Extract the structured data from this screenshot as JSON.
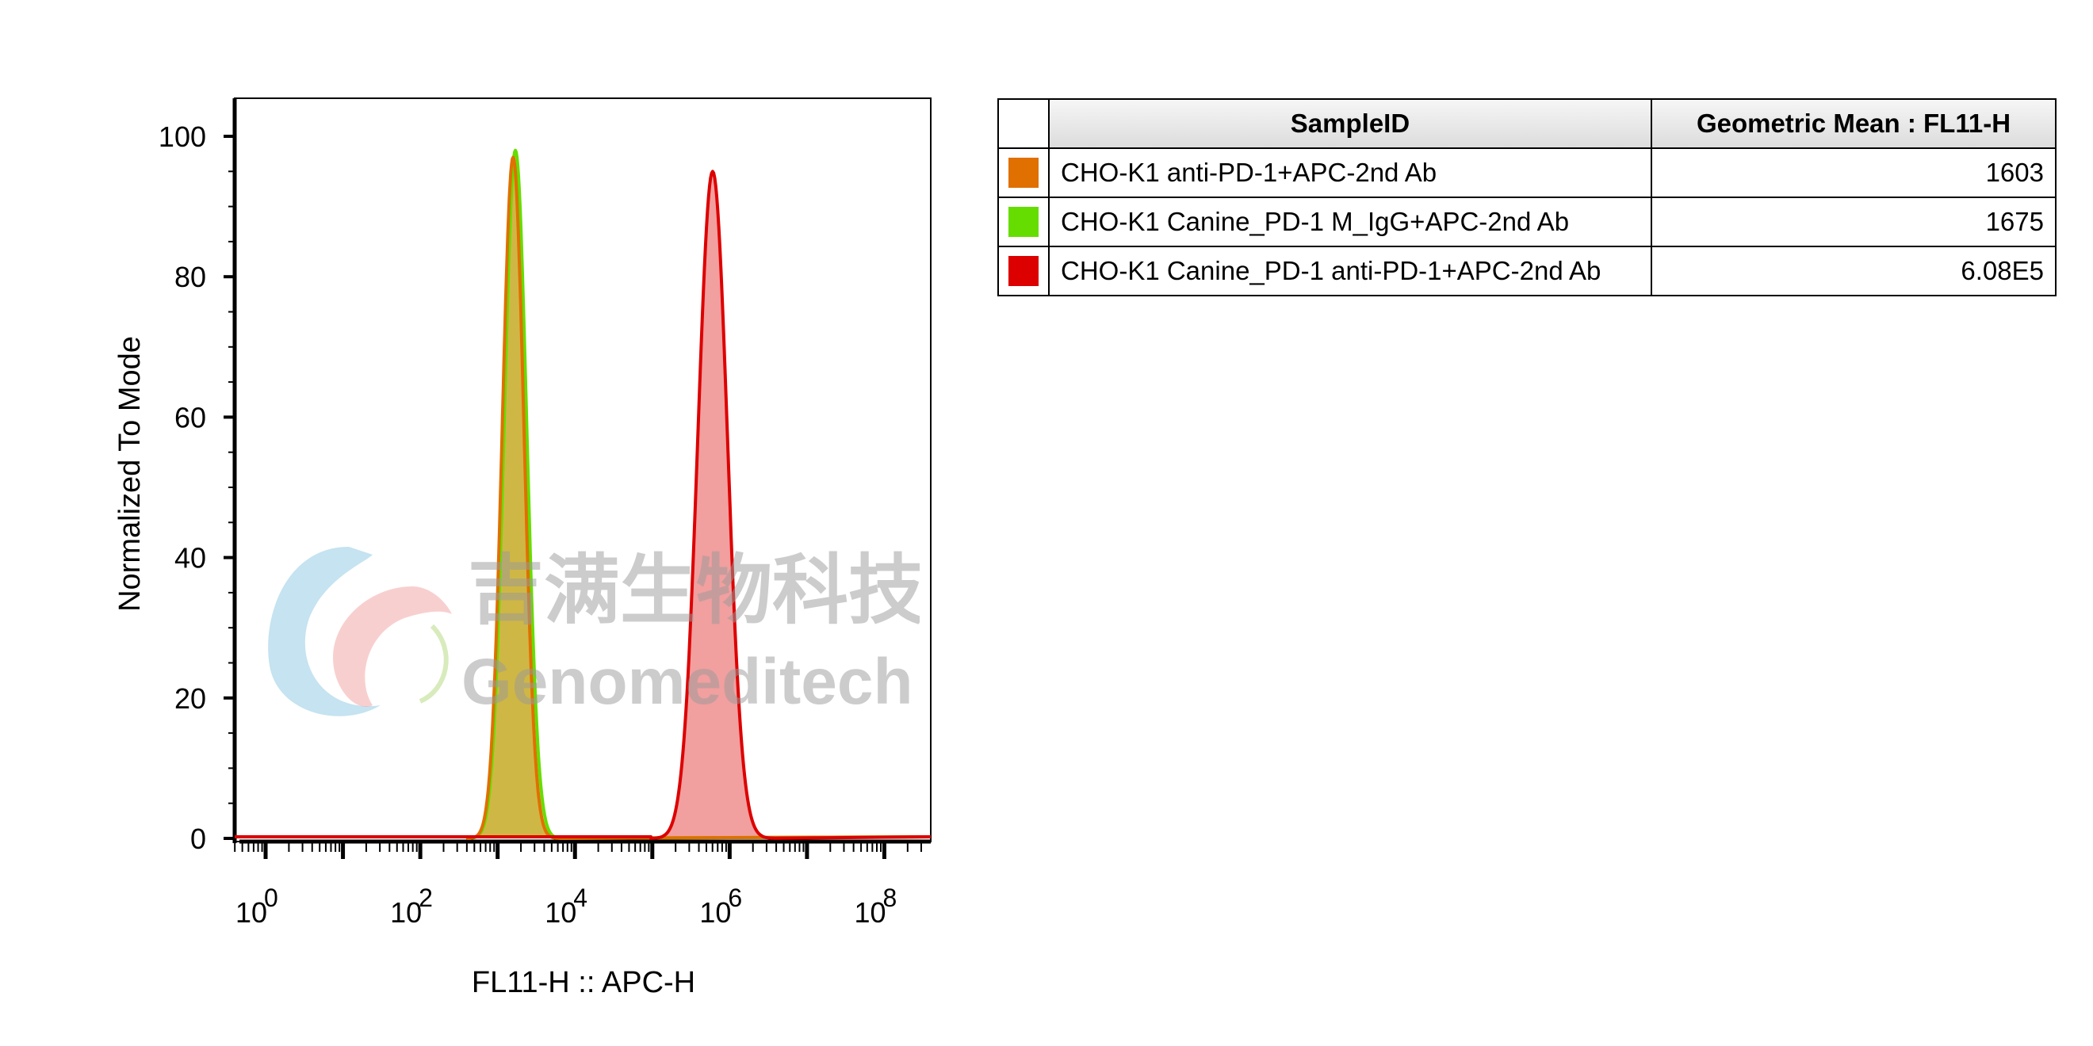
{
  "chart_data": {
    "type": "area",
    "xlabel": "FL11-H :: APC-H",
    "ylabel": "Normalized To Mode",
    "x_scale": "log",
    "xlim_log10": [
      -0.4,
      8.6
    ],
    "ylim": [
      0,
      100
    ],
    "y_ticks": [
      0,
      20,
      40,
      60,
      80,
      100
    ],
    "x_tick_labels": [
      {
        "base": "10",
        "exp": "0",
        "log10": 0
      },
      {
        "base": "10",
        "exp": "2",
        "log10": 2
      },
      {
        "base": "10",
        "exp": "4",
        "log10": 4
      },
      {
        "base": "10",
        "exp": "6",
        "log10": 6
      },
      {
        "base": "10",
        "exp": "8",
        "log10": 8
      }
    ],
    "grid": false,
    "series": [
      {
        "name": "CHO-K1 anti-PD-1+APC-2nd Ab",
        "color": "#e07000",
        "fill": "rgba(200,170,40,0.8)",
        "peak_log10": 3.2,
        "peak_value": 97,
        "sigma": 0.14
      },
      {
        "name": "CHO-K1 Canine_PD-1 M_IgG+APC-2nd Ab",
        "color": "#66dd00",
        "fill": "rgba(190,200,60,0.35)",
        "peak_log10": 3.23,
        "peak_value": 98,
        "sigma": 0.145
      },
      {
        "name": "CHO-K1 Canine_PD-1 anti-PD-1+APC-2nd Ab",
        "color": "#dd0000",
        "fill": "rgba(230,80,80,0.55)",
        "peak_log10": 5.78,
        "peak_value": 95,
        "sigma": 0.19
      }
    ]
  },
  "legend": {
    "headers": [
      "SampleID",
      "Geometric Mean : FL11-H"
    ],
    "rows": [
      {
        "color": "#e07000",
        "name": "CHO-K1 anti-PD-1+APC-2nd Ab",
        "value": "1603"
      },
      {
        "color": "#66dd00",
        "name": "CHO-K1 Canine_PD-1 M_IgG+APC-2nd Ab",
        "value": "1675"
      },
      {
        "color": "#dd0000",
        "name": "CHO-K1 Canine_PD-1 anti-PD-1+APC-2nd Ab",
        "value": "6.08E5"
      }
    ]
  },
  "watermark": {
    "chinese": "吉满生物科技",
    "english": "Genomeditech"
  }
}
